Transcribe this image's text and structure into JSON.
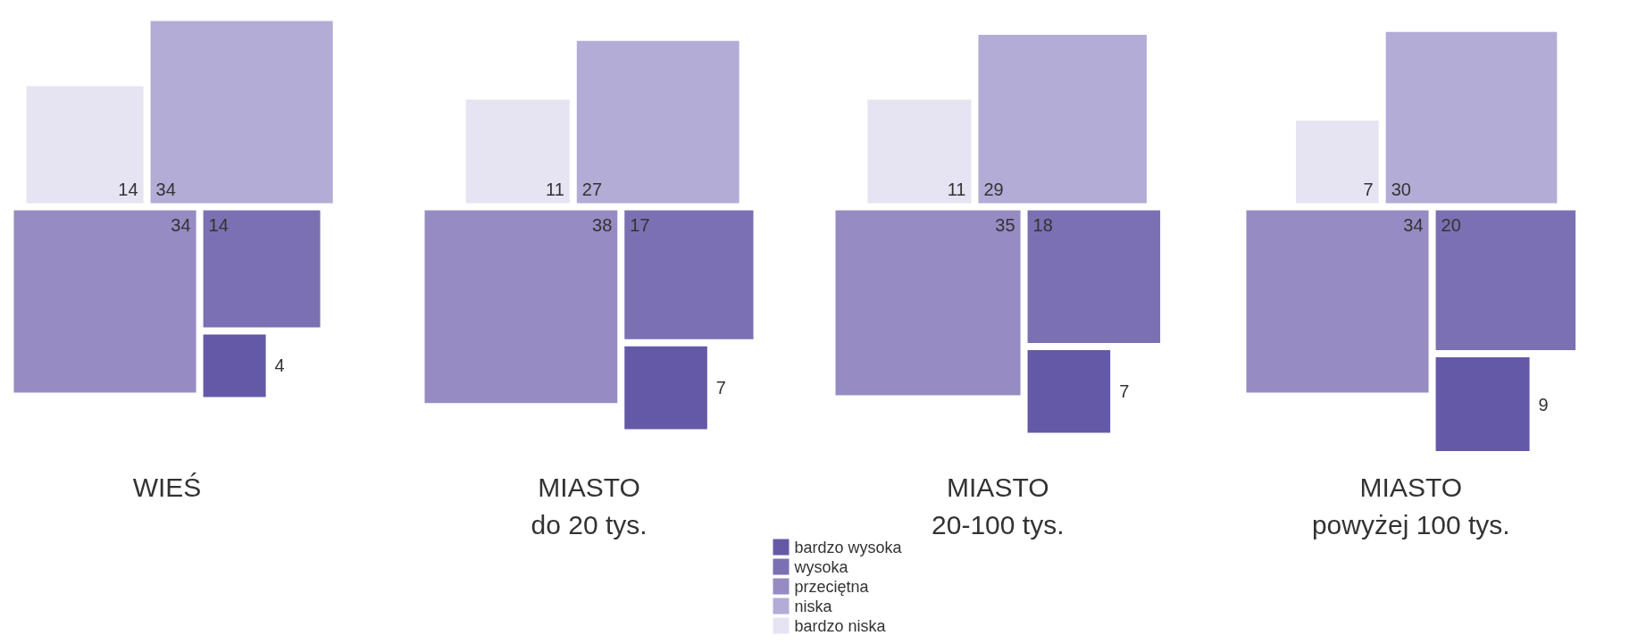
{
  "chart_data": {
    "type": "other",
    "categories": [
      "WIEŚ",
      "MIASTO\ndo 20 tys.",
      "MIASTO\n20-100 tys.",
      "MIASTO\npowyżej 100 tys."
    ],
    "series": [
      {
        "name": "bardzo wysoka",
        "color": "#6459a6",
        "values": [
          4,
          7,
          7,
          9
        ]
      },
      {
        "name": "wysoka",
        "color": "#7a70b2",
        "values": [
          14,
          17,
          18,
          20
        ]
      },
      {
        "name": "przeciętna",
        "color": "#968bc3",
        "values": [
          34,
          38,
          35,
          34
        ]
      },
      {
        "name": "niska",
        "color": "#b3acd6",
        "values": [
          34,
          27,
          29,
          30
        ]
      },
      {
        "name": "bardzo niska",
        "color": "#e6e3f2",
        "values": [
          14,
          11,
          11,
          7
        ]
      }
    ],
    "data_labels": true,
    "legend": "bottom"
  }
}
